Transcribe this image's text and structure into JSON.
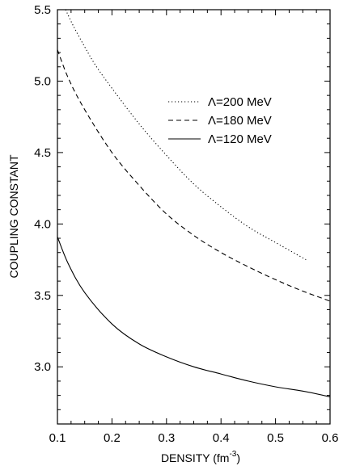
{
  "chart_data": {
    "type": "line",
    "xlabel": "DENSITY (fm",
    "xlabel_sup": "-3",
    "xlabel_close": ")",
    "ylabel": "COUPLING CONSTANT",
    "xlim": [
      0.1,
      0.6
    ],
    "ylim": [
      2.6,
      5.5
    ],
    "xticks": [
      "0.1",
      "0.2",
      "0.3",
      "0.4",
      "0.5",
      "0.6"
    ],
    "yticks": [
      "3.0",
      "3.5",
      "4.0",
      "4.5",
      "5.0",
      "5.5"
    ],
    "grid": false,
    "legend_position": "top-right",
    "series": [
      {
        "name": "Λ=200 MeV",
        "style": "dotted",
        "x": [
          0.115,
          0.13,
          0.15,
          0.17,
          0.2,
          0.25,
          0.3,
          0.35,
          0.4,
          0.45,
          0.5,
          0.556
        ],
        "y": [
          5.5,
          5.38,
          5.24,
          5.11,
          4.95,
          4.7,
          4.48,
          4.28,
          4.12,
          3.98,
          3.87,
          3.75
        ]
      },
      {
        "name": "Λ=180 MeV",
        "style": "dashed",
        "x": [
          0.1,
          0.12,
          0.15,
          0.2,
          0.25,
          0.3,
          0.35,
          0.4,
          0.45,
          0.5,
          0.55,
          0.6
        ],
        "y": [
          5.22,
          5.02,
          4.8,
          4.5,
          4.27,
          4.07,
          3.92,
          3.8,
          3.7,
          3.61,
          3.53,
          3.46
        ]
      },
      {
        "name": "Λ=120 MeV",
        "style": "solid",
        "x": [
          0.1,
          0.12,
          0.15,
          0.2,
          0.25,
          0.3,
          0.35,
          0.4,
          0.45,
          0.5,
          0.55,
          0.6
        ],
        "y": [
          3.91,
          3.72,
          3.52,
          3.3,
          3.16,
          3.07,
          3.0,
          2.95,
          2.9,
          2.86,
          2.83,
          2.79
        ]
      }
    ]
  }
}
